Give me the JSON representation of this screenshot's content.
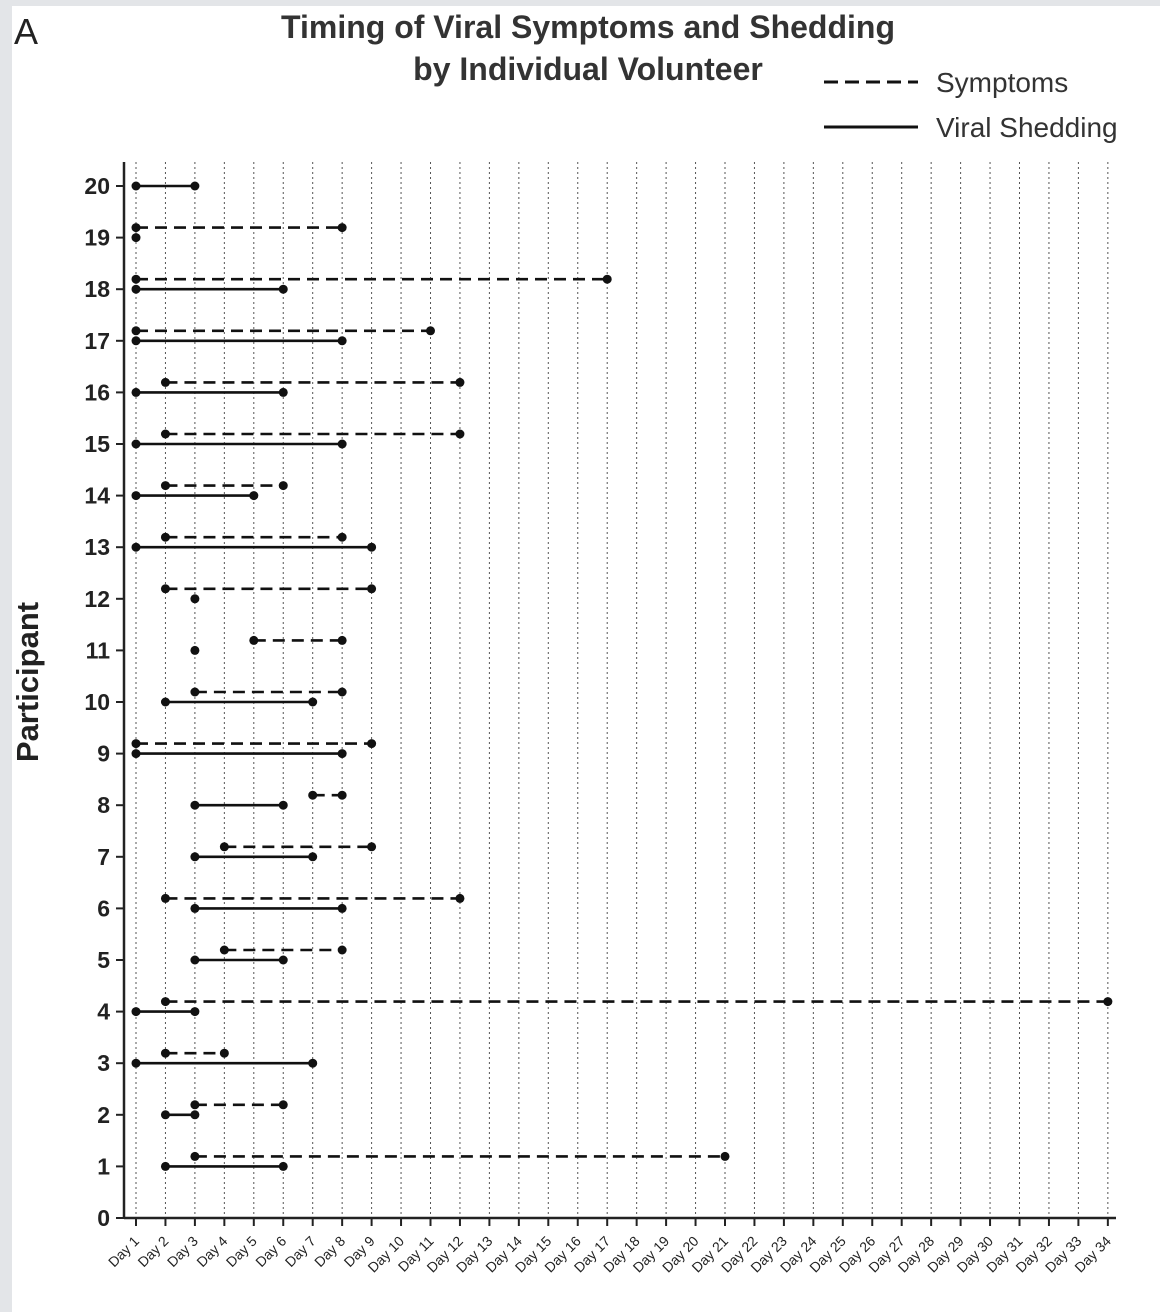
{
  "panel_label": "A",
  "chart_data": {
    "type": "line",
    "title": "Timing of Viral Symptoms and Shedding",
    "subtitle": "by Individual Volunteer",
    "xlabel": "",
    "ylabel": "Participant",
    "x_categories": [
      "Day 1",
      "Day 2",
      "Day 3",
      "Day 4",
      "Day 5",
      "Day 6",
      "Day 7",
      "Day 8",
      "Day 9",
      "Day 10",
      "Day 11",
      "Day 12",
      "Day 13",
      "Day 14",
      "Day 15",
      "Day 16",
      "Day 17",
      "Day 18",
      "Day 19",
      "Day 20",
      "Day 21",
      "Day 22",
      "Day 23",
      "Day 24",
      "Day 25",
      "Day 26",
      "Day 27",
      "Day 28",
      "Day 29",
      "Day 30",
      "Day 31",
      "Day 32",
      "Day 33",
      "Day 34"
    ],
    "y_ticks": [
      0,
      1,
      2,
      3,
      4,
      5,
      6,
      7,
      8,
      9,
      10,
      11,
      12,
      13,
      14,
      15,
      16,
      17,
      18,
      19,
      20
    ],
    "ylim": [
      0,
      20.6
    ],
    "grid": "vertical dotted at each day",
    "legend": {
      "placement": "top-right",
      "entries": [
        {
          "name": "Symptoms",
          "style": "dashed"
        },
        {
          "name": "Viral Shedding",
          "style": "solid"
        }
      ]
    },
    "series": [
      {
        "name": "Symptoms",
        "style": "dashed",
        "intervals": [
          {
            "participant": 19,
            "start": 1,
            "end": 8
          },
          {
            "participant": 18,
            "start": 1,
            "end": 17
          },
          {
            "participant": 17,
            "start": 1,
            "end": 11
          },
          {
            "participant": 16,
            "start": 2,
            "end": 12
          },
          {
            "participant": 15,
            "start": 2,
            "end": 12
          },
          {
            "participant": 14,
            "start": 2,
            "end": 6
          },
          {
            "participant": 13,
            "start": 2,
            "end": 8
          },
          {
            "participant": 12,
            "start": 2,
            "end": 9
          },
          {
            "participant": 11,
            "start": 5,
            "end": 8
          },
          {
            "participant": 10,
            "start": 3,
            "end": 8
          },
          {
            "participant": 9,
            "start": 1,
            "end": 9
          },
          {
            "participant": 8,
            "start": 7,
            "end": 8
          },
          {
            "participant": 7,
            "start": 4,
            "end": 9
          },
          {
            "participant": 6,
            "start": 2,
            "end": 12
          },
          {
            "participant": 5,
            "start": 4,
            "end": 8
          },
          {
            "participant": 4,
            "start": 2,
            "end": 34
          },
          {
            "participant": 3,
            "start": 2,
            "end": 4
          },
          {
            "participant": 2,
            "start": 3,
            "end": 6
          },
          {
            "participant": 1,
            "start": 3,
            "end": 21
          }
        ]
      },
      {
        "name": "Viral Shedding",
        "style": "solid",
        "intervals": [
          {
            "participant": 20,
            "start": 1,
            "end": 3
          },
          {
            "participant": 19,
            "start": 1,
            "end": 1
          },
          {
            "participant": 18,
            "start": 1,
            "end": 6
          },
          {
            "participant": 17,
            "start": 1,
            "end": 8
          },
          {
            "participant": 16,
            "start": 1,
            "end": 6
          },
          {
            "participant": 15,
            "start": 1,
            "end": 8
          },
          {
            "participant": 14,
            "start": 1,
            "end": 5
          },
          {
            "participant": 13,
            "start": 1,
            "end": 9
          },
          {
            "participant": 12,
            "start": 3,
            "end": 3
          },
          {
            "participant": 11,
            "start": 3,
            "end": 3
          },
          {
            "participant": 10,
            "start": 2,
            "end": 7
          },
          {
            "participant": 9,
            "start": 1,
            "end": 8
          },
          {
            "participant": 8,
            "start": 3,
            "end": 6
          },
          {
            "participant": 7,
            "start": 3,
            "end": 7
          },
          {
            "participant": 6,
            "start": 3,
            "end": 8
          },
          {
            "participant": 5,
            "start": 3,
            "end": 6
          },
          {
            "participant": 4,
            "start": 1,
            "end": 3
          },
          {
            "participant": 3,
            "start": 1,
            "end": 7
          },
          {
            "participant": 2,
            "start": 2,
            "end": 3
          },
          {
            "participant": 1,
            "start": 2,
            "end": 6
          }
        ]
      }
    ]
  }
}
